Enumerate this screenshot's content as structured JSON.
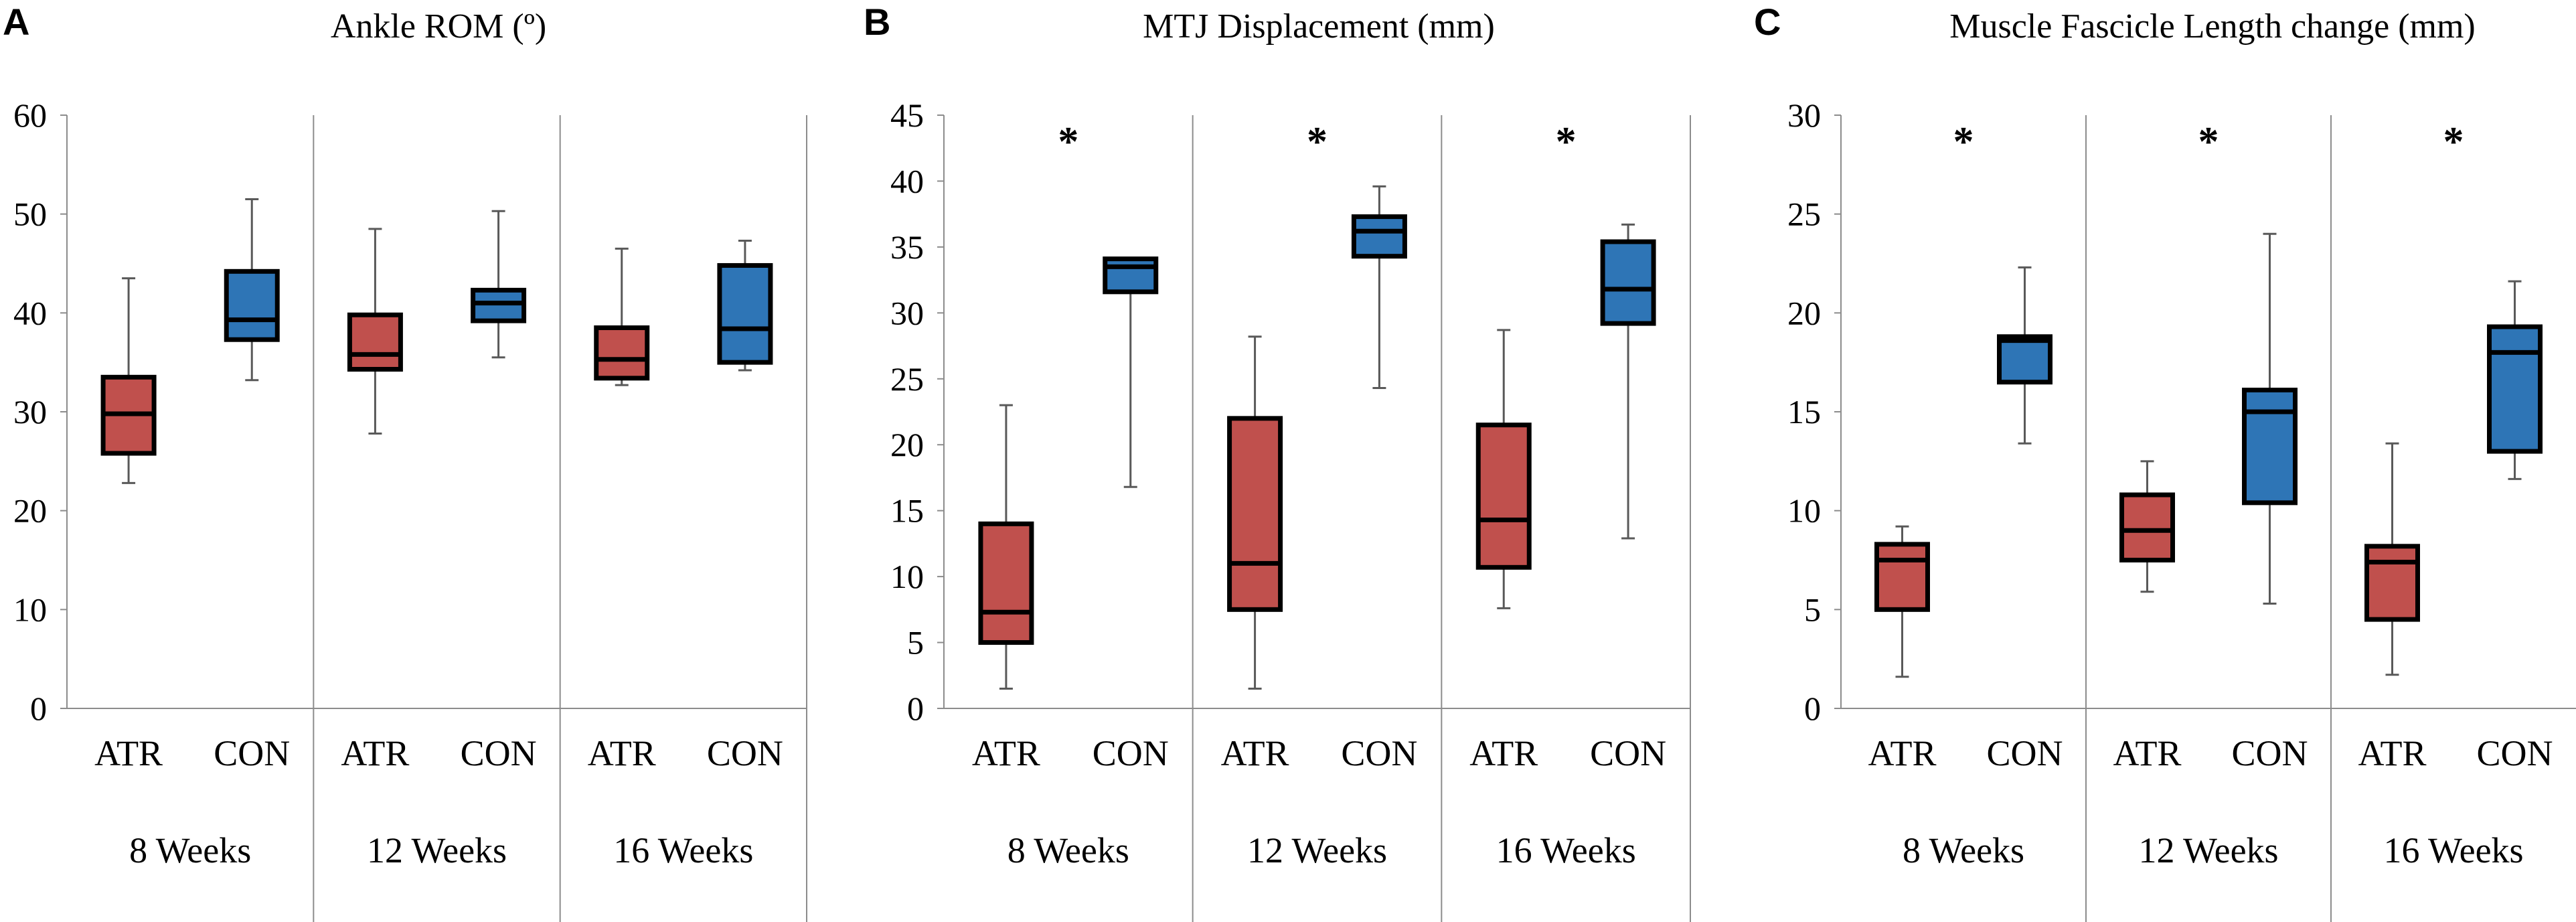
{
  "figure": {
    "colors": {
      "ATR": "#C0504D",
      "CON": "#2E75B6",
      "outline": "#000000",
      "whisker": "#595959",
      "axis": "#8C8C8C"
    },
    "significance_symbol": "*"
  },
  "chart_data": [
    {
      "type": "box",
      "panel": "A",
      "title": "Ankle ROM (º)",
      "ylim": [
        0,
        60
      ],
      "yticks": [
        0,
        10,
        20,
        30,
        40,
        50,
        60
      ],
      "groups": [
        "8 Weeks",
        "12 Weeks",
        "16 Weeks"
      ],
      "categories": [
        "ATR",
        "CON"
      ],
      "boxes": [
        {
          "group": "8 Weeks",
          "category": "ATR",
          "min": 22.8,
          "q1": 25.8,
          "median": 29.8,
          "q3": 33.5,
          "max": 43.5
        },
        {
          "group": "8 Weeks",
          "category": "CON",
          "min": 33.2,
          "q1": 37.3,
          "median": 39.3,
          "q3": 44.2,
          "max": 51.5
        },
        {
          "group": "12 Weeks",
          "category": "ATR",
          "min": 27.8,
          "q1": 34.3,
          "median": 35.8,
          "q3": 39.8,
          "max": 48.5
        },
        {
          "group": "12 Weeks",
          "category": "CON",
          "min": 35.5,
          "q1": 39.2,
          "median": 41.0,
          "q3": 42.3,
          "max": 50.3
        },
        {
          "group": "16 Weeks",
          "category": "ATR",
          "min": 32.7,
          "q1": 33.4,
          "median": 35.3,
          "q3": 38.5,
          "max": 46.5
        },
        {
          "group": "16 Weeks",
          "category": "CON",
          "min": 34.2,
          "q1": 35.0,
          "median": 38.4,
          "q3": 44.8,
          "max": 47.3
        }
      ],
      "significant_groups": []
    },
    {
      "type": "box",
      "panel": "B",
      "title": "MTJ Displacement (mm)",
      "ylim": [
        0,
        45
      ],
      "yticks": [
        0,
        5,
        10,
        15,
        20,
        25,
        30,
        35,
        40,
        45
      ],
      "groups": [
        "8 Weeks",
        "12 Weeks",
        "16 Weeks"
      ],
      "categories": [
        "ATR",
        "CON"
      ],
      "boxes": [
        {
          "group": "8 Weeks",
          "category": "ATR",
          "min": 1.5,
          "q1": 5.0,
          "median": 7.3,
          "q3": 14.0,
          "max": 23.0
        },
        {
          "group": "8 Weeks",
          "category": "CON",
          "min": 16.8,
          "q1": 31.6,
          "median": 33.5,
          "q3": 34.1,
          "max": 34.1
        },
        {
          "group": "12 Weeks",
          "category": "ATR",
          "min": 1.5,
          "q1": 7.5,
          "median": 11.0,
          "q3": 22.0,
          "max": 28.2
        },
        {
          "group": "12 Weeks",
          "category": "CON",
          "min": 24.3,
          "q1": 34.3,
          "median": 36.2,
          "q3": 37.3,
          "max": 39.6
        },
        {
          "group": "16 Weeks",
          "category": "ATR",
          "min": 7.6,
          "q1": 10.7,
          "median": 14.3,
          "q3": 21.5,
          "max": 28.7
        },
        {
          "group": "16 Weeks",
          "category": "CON",
          "min": 12.9,
          "q1": 29.2,
          "median": 31.8,
          "q3": 35.4,
          "max": 36.7
        }
      ],
      "significant_groups": [
        "8 Weeks",
        "12 Weeks",
        "16 Weeks"
      ]
    },
    {
      "type": "box",
      "panel": "C",
      "title": "Muscle Fascicle Length change (mm)",
      "ylim": [
        0,
        30
      ],
      "yticks": [
        0,
        5,
        10,
        15,
        20,
        25,
        30
      ],
      "groups": [
        "8 Weeks",
        "12 Weeks",
        "16 Weeks"
      ],
      "categories": [
        "ATR",
        "CON"
      ],
      "boxes": [
        {
          "group": "8 Weeks",
          "category": "ATR",
          "min": 1.6,
          "q1": 5.0,
          "median": 7.5,
          "q3": 8.3,
          "max": 9.2
        },
        {
          "group": "8 Weeks",
          "category": "CON",
          "min": 13.4,
          "q1": 16.5,
          "median": 18.6,
          "q3": 18.8,
          "max": 22.3
        },
        {
          "group": "12 Weeks",
          "category": "ATR",
          "min": 5.9,
          "q1": 7.5,
          "median": 9.0,
          "q3": 10.8,
          "max": 12.5
        },
        {
          "group": "12 Weeks",
          "category": "CON",
          "min": 5.3,
          "q1": 10.4,
          "median": 15.0,
          "q3": 16.1,
          "max": 24.0
        },
        {
          "group": "16 Weeks",
          "category": "ATR",
          "min": 1.7,
          "q1": 4.5,
          "median": 7.4,
          "q3": 8.2,
          "max": 13.4
        },
        {
          "group": "16 Weeks",
          "category": "CON",
          "min": 11.6,
          "q1": 13.0,
          "median": 18.0,
          "q3": 19.3,
          "max": 21.6
        }
      ],
      "significant_groups": [
        "8 Weeks",
        "12 Weeks",
        "16 Weeks"
      ]
    }
  ]
}
